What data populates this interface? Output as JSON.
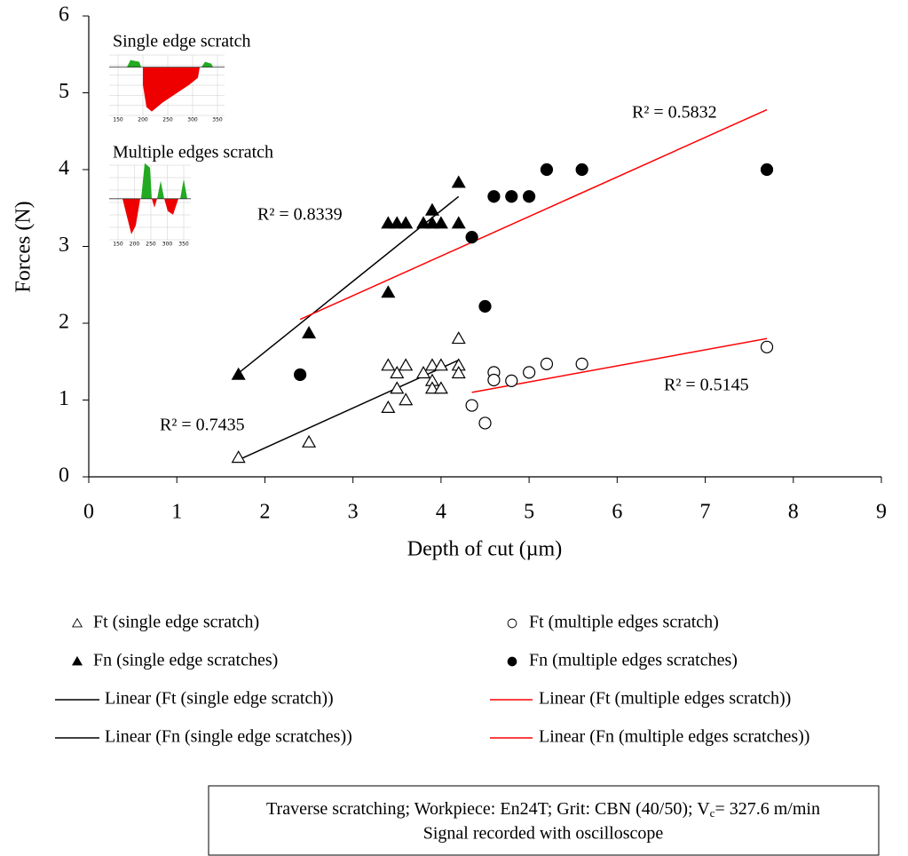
{
  "chart_data": {
    "type": "scatter",
    "xlabel": "Depth of cut (µm)",
    "ylabel": "Forces (N)",
    "xlim": [
      0,
      9
    ],
    "ylim": [
      0,
      6
    ],
    "xticks": [
      0,
      1,
      2,
      3,
      4,
      5,
      6,
      7,
      8,
      9
    ],
    "yticks": [
      0,
      1,
      2,
      3,
      4,
      5,
      6
    ],
    "series": [
      {
        "name": "Ft (single edge scratch)",
        "color": "#000000",
        "marker": "triangle-open",
        "x": [
          1.7,
          2.5,
          3.4,
          3.4,
          3.5,
          3.5,
          3.6,
          3.6,
          3.8,
          3.9,
          3.9,
          3.9,
          4.0,
          4.0,
          4.2,
          4.2,
          4.2
        ],
        "values": [
          0.25,
          0.45,
          0.9,
          1.45,
          1.35,
          1.15,
          1.0,
          1.45,
          1.35,
          1.45,
          1.25,
          1.15,
          1.45,
          1.15,
          1.45,
          1.35,
          1.8
        ]
      },
      {
        "name": "Fn (single edge scratches)",
        "color": "#000000",
        "marker": "triangle-filled",
        "x": [
          1.7,
          2.5,
          3.4,
          3.4,
          3.5,
          3.6,
          3.8,
          3.9,
          3.9,
          4.0,
          4.2,
          4.2
        ],
        "values": [
          1.33,
          1.87,
          2.4,
          3.3,
          3.3,
          3.3,
          3.3,
          3.3,
          3.47,
          3.3,
          3.3,
          3.83
        ]
      },
      {
        "name": "Ft (multiple edges scratch)",
        "color": "#000000",
        "marker": "circle-open",
        "x": [
          4.35,
          4.5,
          4.6,
          4.6,
          4.8,
          5.0,
          5.2,
          5.6,
          7.7
        ],
        "values": [
          0.93,
          0.7,
          1.36,
          1.26,
          1.25,
          1.36,
          1.47,
          1.47,
          1.69
        ]
      },
      {
        "name": "Fn (multiple edges scratches)",
        "color": "#000000",
        "marker": "circle-filled",
        "x": [
          2.4,
          4.35,
          4.5,
          4.6,
          4.8,
          5.0,
          5.2,
          5.6,
          7.7
        ],
        "values": [
          1.33,
          3.12,
          2.22,
          3.65,
          3.65,
          3.65,
          4.0,
          4.0,
          4.0
        ]
      }
    ],
    "trendlines": [
      {
        "name": "Linear (Ft (single edge scratch))",
        "color": "#000000",
        "x": [
          1.7,
          4.2
        ],
        "values": [
          0.22,
          1.52
        ],
        "annotation": "R² = 0.7435"
      },
      {
        "name": "Linear (Fn (single edge scratches))",
        "color": "#000000",
        "x": [
          1.7,
          4.2
        ],
        "values": [
          1.35,
          3.65
        ],
        "annotation": "R² = 0.8339"
      },
      {
        "name": "Linear (Ft (multiple edges scratch))",
        "color": "#ff0000",
        "x": [
          4.35,
          7.7
        ],
        "values": [
          1.1,
          1.8
        ],
        "annotation": "R² = 0.5145"
      },
      {
        "name": "Linear (Fn (multiple edges scratches))",
        "color": "#ff0000",
        "x": [
          2.4,
          7.7
        ],
        "values": [
          2.05,
          4.78
        ],
        "annotation": "R² = 0.5832"
      }
    ],
    "insets": [
      {
        "title": "Single edge scratch",
        "ticks": [
          150,
          200,
          250,
          300,
          350
        ]
      },
      {
        "title": "Multiple edges scratch",
        "ticks": [
          150,
          200,
          250,
          300,
          350
        ]
      }
    ],
    "note": {
      "line1_pre": "Traverse scratching; Workpiece: En24T; Grit: CBN (40/50); V",
      "line1_sub": "c",
      "line1_post": "= 327.6 m/min",
      "line2": "Signal recorded with oscilloscope"
    }
  }
}
